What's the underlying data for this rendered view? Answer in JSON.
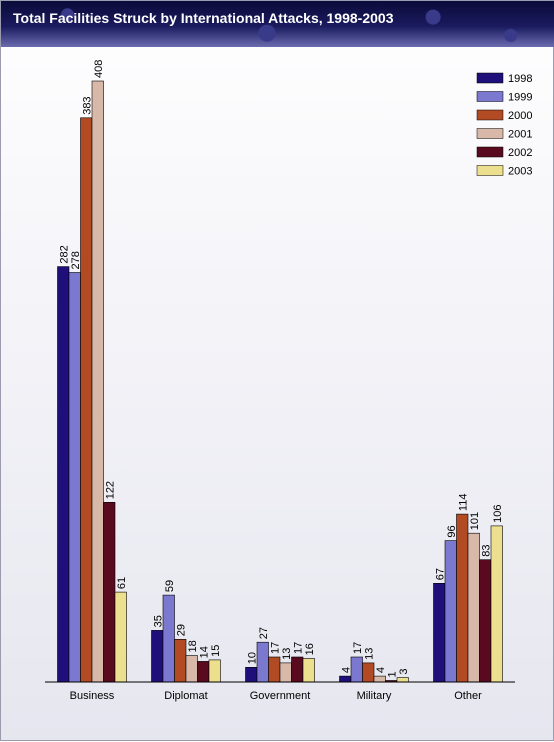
{
  "chart_data": {
    "type": "bar",
    "title": "Total Facilities Struck by International Attacks, 1998-2003",
    "categories": [
      "Business",
      "Diplomat",
      "Government",
      "Military",
      "Other"
    ],
    "series": [
      {
        "name": "1998",
        "color": "#1f0f7a",
        "values": [
          282,
          35,
          10,
          4,
          67
        ]
      },
      {
        "name": "1999",
        "color": "#7b78d0",
        "values": [
          278,
          59,
          27,
          17,
          96
        ]
      },
      {
        "name": "2000",
        "color": "#b24a24",
        "values": [
          383,
          29,
          17,
          13,
          114
        ]
      },
      {
        "name": "2001",
        "color": "#d8b8a8",
        "values": [
          408,
          18,
          13,
          4,
          101
        ]
      },
      {
        "name": "2002",
        "color": "#5a0a1e",
        "values": [
          122,
          14,
          17,
          1,
          83
        ]
      },
      {
        "name": "2003",
        "color": "#ece08e",
        "values": [
          61,
          15,
          16,
          3,
          106
        ]
      }
    ],
    "ylim": [
      0,
      408
    ],
    "legend_position": "top-right",
    "grid": false
  }
}
